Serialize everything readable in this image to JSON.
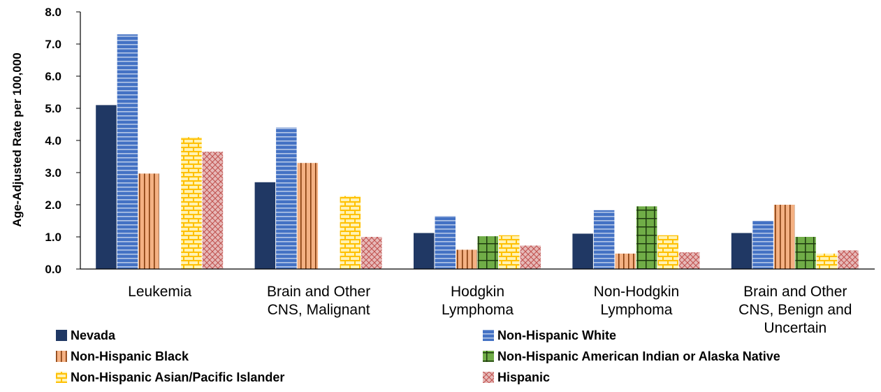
{
  "chart_data": {
    "type": "bar",
    "ylabel": "Age-Adjusted Rate  per 100,000",
    "ylim": [
      0,
      8
    ],
    "yticks": [
      "0.0",
      "1.0",
      "2.0",
      "3.0",
      "4.0",
      "5.0",
      "6.0",
      "7.0",
      "8.0"
    ],
    "grid": false,
    "legend_position": "bottom",
    "categories": [
      [
        "Leukemia"
      ],
      [
        "Brain and Other",
        "CNS, Malignant"
      ],
      [
        "Hodgkin",
        "Lymphoma"
      ],
      [
        "Non-Hodgkin",
        "Lymphoma"
      ],
      [
        "Brain and Other",
        "CNS, Benign and",
        "Uncertain"
      ]
    ],
    "series": [
      {
        "name": "Nevada",
        "color": "#203864",
        "pattern": "solid",
        "values": [
          5.1,
          2.7,
          1.12,
          1.1,
          1.12
        ]
      },
      {
        "name": "Non-Hispanic White",
        "color": "#4472c4",
        "pattern": "horizontal-stripes",
        "values": [
          7.3,
          4.4,
          1.65,
          1.83,
          1.5
        ]
      },
      {
        "name": "Non-Hispanic Black",
        "color": "#f4b183",
        "pattern": "vertical-stripes",
        "values": [
          2.97,
          3.3,
          0.6,
          0.48,
          2.0
        ]
      },
      {
        "name": "Non-Hispanic American Indian or Alaska Native",
        "color": "#70ad47",
        "pattern": "grid",
        "values": [
          null,
          null,
          1.02,
          1.95,
          1.0
        ]
      },
      {
        "name": "Non-Hispanic Asian/Pacific Islander",
        "color": "#ffd966",
        "pattern": "brick",
        "values": [
          4.1,
          2.27,
          1.05,
          1.05,
          0.48
        ]
      },
      {
        "name": "Hispanic",
        "color": "#d99594",
        "pattern": "diagonal-crosshatch",
        "values": [
          3.65,
          1.0,
          0.73,
          0.52,
          0.58
        ]
      }
    ]
  }
}
